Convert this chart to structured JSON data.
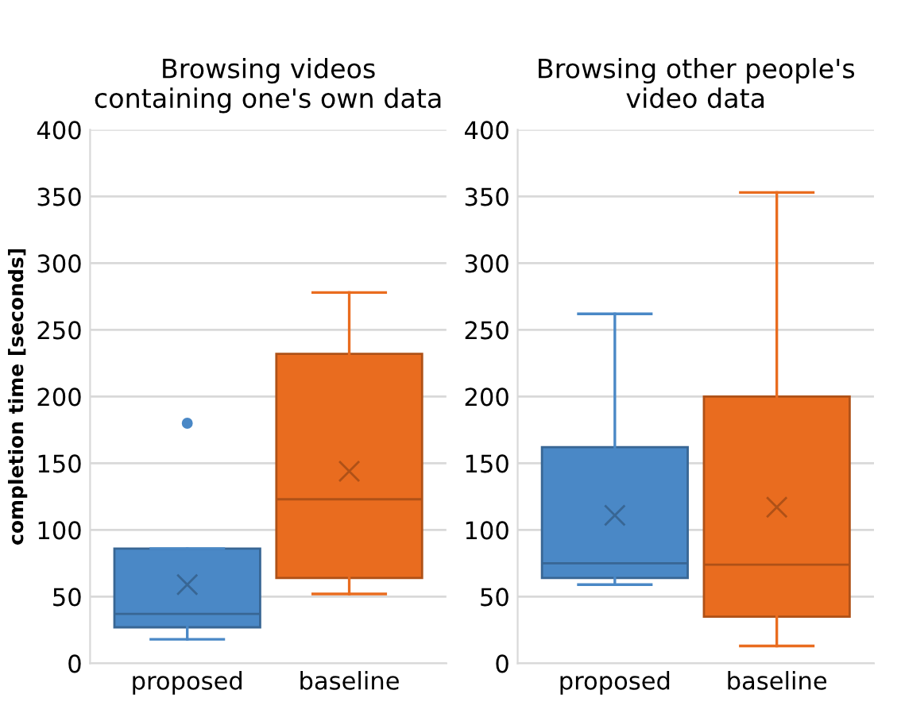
{
  "chart_data": [
    {
      "type": "box",
      "title": "Browsing videos containing one's own data",
      "ylabel": "completion time [seconds]",
      "categories": [
        "proposed",
        "baseline"
      ],
      "colors": [
        "#4a88c6",
        "#e96c1f"
      ],
      "boxes": [
        {
          "low": 18,
          "q1": 27,
          "median": 37,
          "q3": 86,
          "high": 86,
          "mean": 59,
          "outliers": [
            180
          ]
        },
        {
          "low": 52,
          "q1": 64,
          "median": 123,
          "q3": 232,
          "high": 278,
          "mean": 144
        }
      ],
      "ylim": [
        0,
        400
      ],
      "yticks": [
        0,
        50,
        100,
        150,
        200,
        250,
        300,
        350,
        400
      ],
      "grid": "y",
      "legend": false
    },
    {
      "type": "box",
      "title": "Browsing other people's video data",
      "categories": [
        "proposed",
        "baseline"
      ],
      "colors": [
        "#4a88c6",
        "#e96c1f"
      ],
      "boxes": [
        {
          "low": 59,
          "q1": 64,
          "median": 75,
          "q3": 162,
          "high": 262,
          "mean": 111
        },
        {
          "low": 13,
          "q1": 35,
          "median": 74,
          "q3": 200,
          "high": 353,
          "mean": 117
        }
      ],
      "ylim": [
        0,
        400
      ],
      "yticks": [
        0,
        50,
        100,
        150,
        200,
        250,
        300,
        350,
        400
      ],
      "grid": "y",
      "legend": false
    }
  ]
}
